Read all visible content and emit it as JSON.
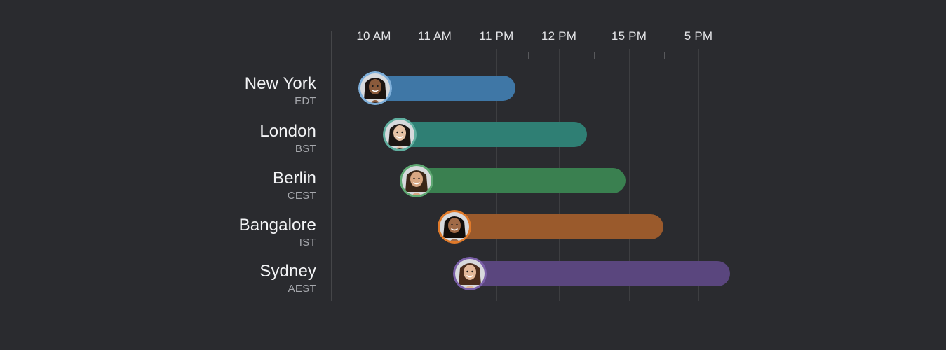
{
  "timeline": {
    "ticks": [
      {
        "label": "10 AM"
      },
      {
        "label": "11 AM"
      },
      {
        "label": "11 PM"
      },
      {
        "label": "12 PM"
      },
      {
        "label": "15 PM"
      },
      {
        "label": "5 PM"
      }
    ],
    "rows": [
      {
        "city": "New York",
        "tz": "EDT",
        "color": "#3f77a6",
        "ring": "#7fb0db",
        "start": 0,
        "end": 2.3,
        "skin": "#8a5a3b",
        "hair": "#1c1410"
      },
      {
        "city": "London",
        "tz": "BST",
        "color": "#2f7f74",
        "ring": "#5fae9f",
        "start": 0.4,
        "end": 3.4,
        "skin": "#e7c3a6",
        "hair": "#1d1714"
      },
      {
        "city": "Berlin",
        "tz": "CEST",
        "color": "#3a8050",
        "ring": "#5ea872",
        "start": 0.68,
        "end": 3.95,
        "skin": "#d9a783",
        "hair": "#3a2618"
      },
      {
        "city": "Bangalore",
        "tz": "IST",
        "color": "#9a5a2c",
        "ring": "#e07a2a",
        "start": 1.3,
        "end": 4.5,
        "skin": "#a06a47",
        "hair": "#120d0a"
      },
      {
        "city": "Sydney",
        "tz": "AEST",
        "color": "#5a467e",
        "ring": "#7a5fa8",
        "start": 1.55,
        "end": 5.45,
        "skin": "#e2b89a",
        "hair": "#4a2c1c"
      }
    ]
  }
}
